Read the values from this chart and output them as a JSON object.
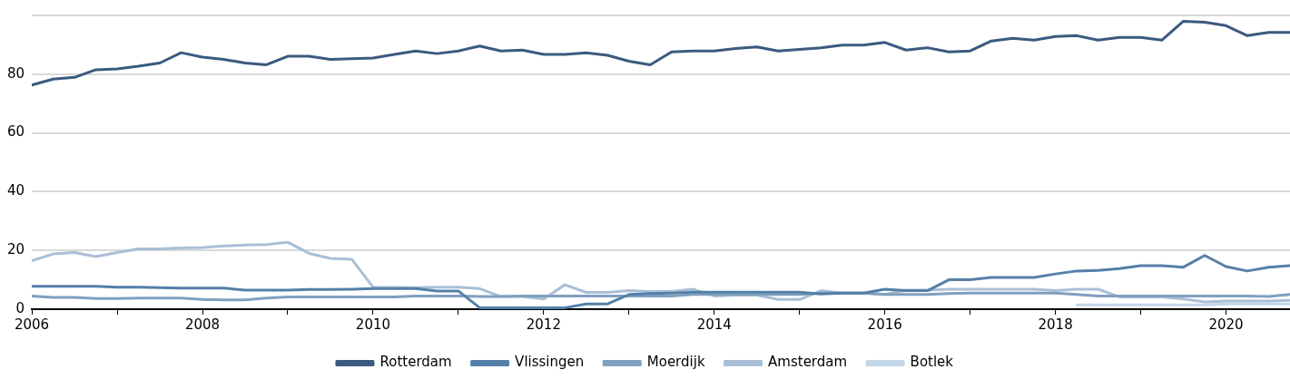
{
  "chart_data": {
    "type": "line",
    "x": [
      2006,
      2006.25,
      2006.5,
      2006.75,
      2007,
      2007.25,
      2007.5,
      2007.75,
      2008,
      2008.25,
      2008.5,
      2008.75,
      2009,
      2009.25,
      2009.5,
      2009.75,
      2010,
      2010.25,
      2010.5,
      2010.75,
      2011,
      2011.25,
      2011.5,
      2011.75,
      2012,
      2012.25,
      2012.5,
      2012.75,
      2013,
      2013.25,
      2013.5,
      2013.75,
      2014,
      2014.25,
      2014.5,
      2014.75,
      2015,
      2015.25,
      2015.5,
      2015.75,
      2016,
      2016.25,
      2016.5,
      2016.75,
      2017,
      2017.25,
      2017.5,
      2017.75,
      2018,
      2018.25,
      2018.5,
      2018.75,
      2019,
      2019.25,
      2019.5,
      2019.75,
      2020,
      2020.25,
      2020.5,
      2020.75
    ],
    "series": [
      {
        "name": "Rotterdam",
        "color": "#3b5a80",
        "values": [
          76.3,
          78.3,
          78.9,
          81.5,
          81.8,
          82.7,
          83.8,
          87.3,
          85.8,
          85,
          83.8,
          83.2,
          86.1,
          86.1,
          85,
          85.3,
          85.5,
          86.7,
          87.9,
          87,
          87.9,
          89.6,
          87.9,
          88.2,
          86.7,
          86.7,
          87.3,
          86.4,
          84.4,
          83.2,
          87.6,
          87.9,
          87.9,
          88.7,
          89.3,
          87.9,
          88.4,
          89,
          89.9,
          89.9,
          90.8,
          88.2,
          89,
          87.6,
          87.9,
          91.3,
          92.2,
          91.6,
          92.8,
          93.1,
          91.6,
          92.5,
          92.5,
          91.6,
          98,
          97.7,
          96.5,
          93.1,
          94.2,
          94.2
        ]
      },
      {
        "name": "Vlissingen",
        "color": "#5480a8",
        "values": [
          7.8,
          7.8,
          7.8,
          7.8,
          7.5,
          7.5,
          7.3,
          7.2,
          7.2,
          7.2,
          6.5,
          6.5,
          6.5,
          6.7,
          6.7,
          6.8,
          7,
          7,
          7,
          6.2,
          6.2,
          0.5,
          0.5,
          0.5,
          0.5,
          0.5,
          1.8,
          1.8,
          5,
          5.3,
          5.5,
          5.8,
          5.8,
          5.8,
          5.8,
          5.8,
          5.8,
          5.2,
          5.5,
          5.5,
          6.8,
          6.3,
          6.3,
          10,
          10,
          10.8,
          10.8,
          10.8,
          12,
          13,
          13.2,
          13.8,
          14.8,
          14.8,
          14.3,
          18.3,
          14.5,
          13,
          14.3,
          14.8
        ]
      },
      {
        "name": "Moerdijk",
        "color": "#7f9fc0",
        "values": [
          4.5,
          4,
          4,
          3.6,
          3.6,
          3.8,
          3.8,
          3.8,
          3.3,
          3.2,
          3.2,
          3.8,
          4.2,
          4.2,
          4.2,
          4.2,
          4.2,
          4.2,
          4.5,
          4.5,
          4.5,
          4.3,
          4.3,
          4.5,
          4.5,
          4.5,
          4.5,
          4.5,
          4.5,
          4.5,
          4.5,
          5,
          5,
          5,
          5,
          5,
          5,
          5.5,
          5.5,
          5.5,
          5,
          5,
          5,
          5.3,
          5.5,
          5.5,
          5.5,
          5.5,
          5.5,
          5,
          4.5,
          4.5,
          4.5,
          4.5,
          4.5,
          4.5,
          4.5,
          4.5,
          4.3,
          5
        ]
      },
      {
        "name": "Amsterdam",
        "color": "#a9bfd6",
        "values": [
          16.5,
          18.8,
          19.3,
          17.9,
          19.3,
          20.5,
          20.5,
          20.8,
          21,
          21.5,
          21.8,
          22,
          22.8,
          19,
          17.3,
          17,
          7.5,
          7.4,
          7.3,
          7.5,
          7.5,
          7,
          4.3,
          4.3,
          3.5,
          8.3,
          5.7,
          5.7,
          6.3,
          6,
          6,
          6.8,
          4.5,
          4.8,
          4.8,
          3.3,
          3.3,
          6.3,
          5.5,
          5.5,
          5,
          6.5,
          6.5,
          6.8,
          6.8,
          6.8,
          6.8,
          6.8,
          6.3,
          6.8,
          6.8,
          4.2,
          4.2,
          4.2,
          3.5,
          2.5,
          2.8,
          2.8,
          2.8,
          3
        ]
      },
      {
        "name": "Botlek",
        "color": "#c3d6e8",
        "values": [
          null,
          null,
          null,
          null,
          null,
          null,
          null,
          null,
          null,
          null,
          null,
          null,
          null,
          null,
          null,
          null,
          null,
          null,
          null,
          null,
          null,
          null,
          null,
          null,
          null,
          null,
          null,
          null,
          null,
          null,
          null,
          null,
          null,
          null,
          null,
          null,
          null,
          null,
          null,
          null,
          null,
          null,
          null,
          null,
          null,
          null,
          null,
          null,
          null,
          1.5,
          1.5,
          1.5,
          1.5,
          1.5,
          1.5,
          1.5,
          1.8,
          1.8,
          1.8,
          1.8
        ]
      }
    ],
    "xlim": [
      2006,
      2020.75
    ],
    "ylim": [
      0,
      100
    ],
    "xticks": [
      2006,
      {
        "value": 2007,
        "label": null
      },
      2008,
      {
        "value": 2009,
        "label": null
      },
      2010,
      {
        "value": 2011,
        "label": null
      },
      2012,
      {
        "value": 2013,
        "label": null
      },
      2014,
      {
        "value": 2015,
        "label": null
      },
      2016,
      {
        "value": 2017,
        "label": null
      },
      2018,
      {
        "value": 2019,
        "label": null
      },
      2020
    ],
    "yticks": [
      0,
      20,
      40,
      60,
      80,
      {
        "value": 100,
        "label": null
      }
    ],
    "grid": "y",
    "legend": "bottom",
    "marker": "none",
    "line_style": "solid"
  }
}
